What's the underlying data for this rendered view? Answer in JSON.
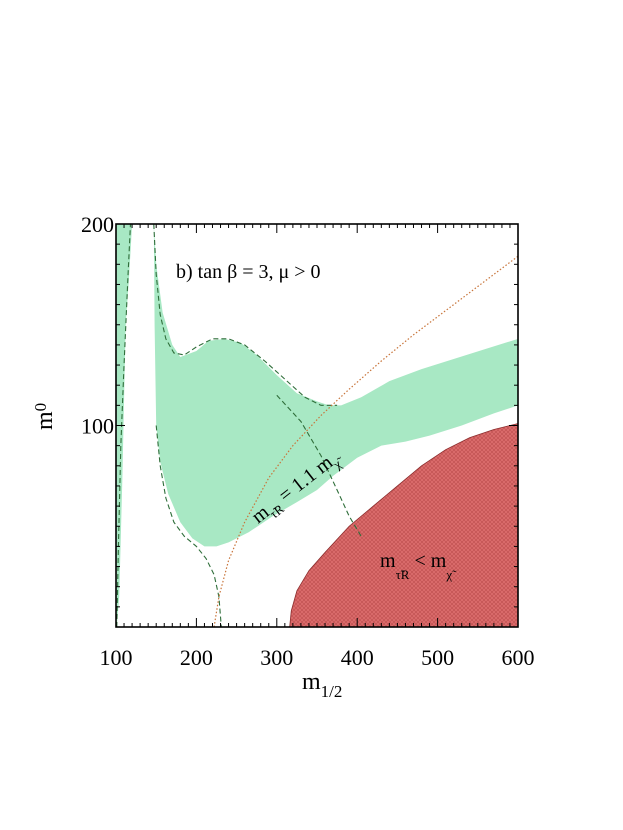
{
  "chart_data": {
    "type": "area",
    "panel_label": "b) tan β = 3,   μ > 0",
    "xlabel": "m",
    "xlabel_sub": "1/2",
    "ylabel": "m",
    "ylabel_sub": "0",
    "xlim": [
      100,
      600
    ],
    "ylim": [
      0,
      200
    ],
    "x_ticks": [
      100,
      200,
      300,
      400,
      500,
      600
    ],
    "y_ticks": [
      100,
      200
    ],
    "regions": [
      {
        "name": "green-band-left-strip",
        "color": "#a8e8c4",
        "points": [
          [
            100,
            0
          ],
          [
            101,
            0
          ],
          [
            104,
            15
          ],
          [
            108,
            75
          ],
          [
            112,
            150
          ],
          [
            116,
            200
          ],
          [
            100,
            200
          ]
        ]
      },
      {
        "name": "green-band-main",
        "color": "#a8e8c4",
        "points": [
          [
            120,
            200
          ],
          [
            116,
            172
          ],
          [
            112,
            150
          ],
          [
            108,
            128
          ],
          [
            105,
            110
          ],
          [
            103,
            80
          ],
          [
            101,
            0
          ],
          [
            100,
            0
          ],
          [
            100,
            0
          ],
          [
            100,
            200
          ]
        ]
      },
      {
        "name": "green-band-right-of-pole",
        "color": "#a8e8c4",
        "points": [
          [
            147,
            200
          ],
          [
            150,
            180
          ],
          [
            158,
            156
          ],
          [
            170,
            140
          ],
          [
            180,
            134
          ],
          [
            200,
            137
          ],
          [
            215,
            142
          ],
          [
            235,
            143
          ],
          [
            255,
            141
          ],
          [
            275,
            135
          ],
          [
            300,
            125
          ],
          [
            325,
            116
          ],
          [
            350,
            112
          ],
          [
            365,
            110
          ],
          [
            380,
            110
          ],
          [
            405,
            114
          ],
          [
            440,
            122
          ],
          [
            480,
            128
          ],
          [
            520,
            133
          ],
          [
            560,
            138
          ],
          [
            600,
            143
          ],
          [
            600,
            110
          ],
          [
            570,
            106
          ],
          [
            530,
            100
          ],
          [
            490,
            95
          ],
          [
            460,
            92
          ],
          [
            430,
            90
          ],
          [
            400,
            84
          ],
          [
            370,
            75
          ],
          [
            350,
            68
          ],
          [
            325,
            62
          ],
          [
            295,
            55
          ],
          [
            265,
            47
          ],
          [
            240,
            42
          ],
          [
            225,
            40
          ],
          [
            210,
            40
          ],
          [
            195,
            44
          ],
          [
            180,
            52
          ],
          [
            165,
            66
          ],
          [
            155,
            82
          ],
          [
            150,
            100
          ],
          [
            148,
            150
          ],
          [
            147,
            200
          ]
        ]
      },
      {
        "name": "excluded-stau-lsp",
        "color": "#d96a6a",
        "points": [
          [
            316,
            0
          ],
          [
            318,
            8
          ],
          [
            325,
            18
          ],
          [
            340,
            28
          ],
          [
            360,
            37
          ],
          [
            390,
            50
          ],
          [
            420,
            60
          ],
          [
            450,
            70
          ],
          [
            480,
            80
          ],
          [
            510,
            88
          ],
          [
            540,
            94
          ],
          [
            570,
            98
          ],
          [
            600,
            101
          ],
          [
            600,
            0
          ]
        ]
      }
    ],
    "lines": [
      {
        "name": "dashed-boundary-left",
        "style": "dashed",
        "color": "#2f6e3a",
        "points": [
          [
            101,
            0
          ],
          [
            103,
            40
          ],
          [
            106,
            90
          ],
          [
            110,
            130
          ],
          [
            115,
            175
          ],
          [
            118,
            200
          ]
        ]
      },
      {
        "name": "dashed-boundary-pole",
        "style": "dashed",
        "color": "#2f6e3a",
        "points": [
          [
            147,
            200
          ],
          [
            150,
            175
          ],
          [
            155,
            155
          ],
          [
            162,
            143
          ],
          [
            172,
            136
          ],
          [
            185,
            135
          ],
          [
            200,
            139
          ],
          [
            220,
            143
          ],
          [
            240,
            143
          ],
          [
            260,
            140
          ],
          [
            285,
            132
          ],
          [
            310,
            123
          ],
          [
            335,
            114
          ],
          [
            355,
            110
          ],
          [
            375,
            110
          ]
        ]
      },
      {
        "name": "dashed-boundary-inner",
        "style": "dashed",
        "color": "#2f6e3a",
        "points": [
          [
            150,
            100
          ],
          [
            155,
            80
          ],
          [
            162,
            64
          ],
          [
            172,
            52
          ],
          [
            185,
            45
          ],
          [
            200,
            40
          ],
          [
            212,
            34
          ],
          [
            222,
            26
          ],
          [
            228,
            15
          ],
          [
            231,
            0
          ]
        ]
      },
      {
        "name": "dashed-boundary-lower-right",
        "style": "dashed",
        "color": "#2f6e3a",
        "points": [
          [
            300,
            115
          ],
          [
            330,
            102
          ],
          [
            355,
            85
          ],
          [
            375,
            68
          ],
          [
            390,
            55
          ],
          [
            405,
            45
          ]
        ]
      },
      {
        "name": "dotted-stau-contour",
        "style": "dotted",
        "color": "#c8743a",
        "points": [
          [
            222,
            0
          ],
          [
            228,
            15
          ],
          [
            240,
            33
          ],
          [
            260,
            52
          ],
          [
            290,
            74
          ],
          [
            320,
            90
          ],
          [
            355,
            105
          ],
          [
            390,
            118
          ],
          [
            430,
            132
          ],
          [
            470,
            145
          ],
          [
            510,
            157
          ],
          [
            550,
            169
          ],
          [
            580,
            178
          ],
          [
            600,
            184
          ]
        ]
      }
    ],
    "annotations": [
      {
        "name": "stau-contour-label",
        "text": "m",
        "sub": "τ̃R",
        "rest": " = 1.1 m",
        "sub2": "χ̃"
      },
      {
        "name": "excluded-region-label",
        "text": "m",
        "sub": "τ̃R",
        "rest": " < m",
        "sub2": "χ̃"
      }
    ]
  }
}
